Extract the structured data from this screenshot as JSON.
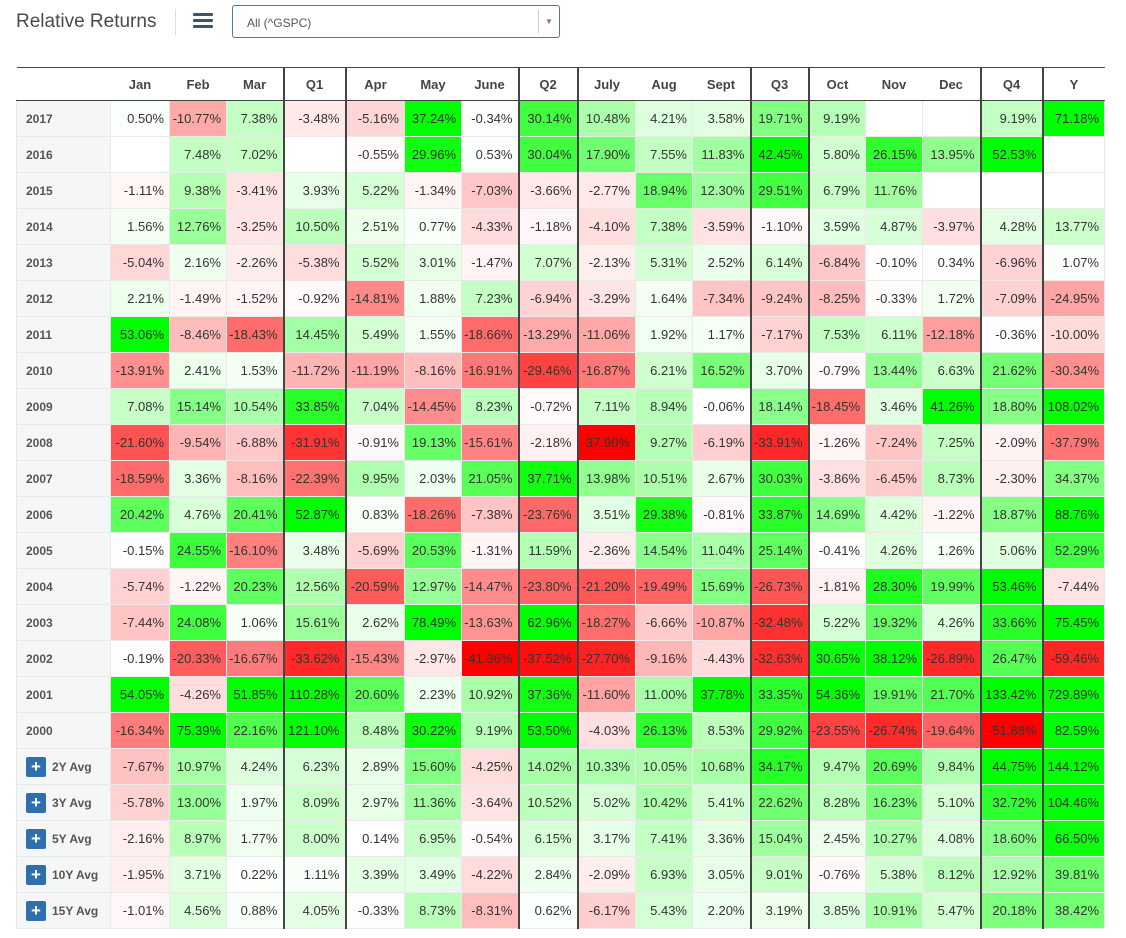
{
  "header": {
    "title": "Relative Returns",
    "menu_icon": "hamburger-menu-icon",
    "select": {
      "value": "All (^GSPC)",
      "arrow_icon": "caret-down-icon"
    }
  },
  "colors": {
    "positive_max": "#00ff00",
    "negative_max": "#ff0000",
    "header_border": "#444444",
    "row_header_bg": "#f5f6f8"
  },
  "table": {
    "columns": [
      "Jan",
      "Feb",
      "Mar",
      "Q1",
      "Apr",
      "May",
      "June",
      "Q2",
      "July",
      "Aug",
      "Sept",
      "Q3",
      "Oct",
      "Nov",
      "Dec",
      "Q4",
      "Y"
    ],
    "rows": [
      {
        "label": "2017",
        "values": [
          "0.50%",
          "-10.77%",
          "7.38%",
          "-3.48%",
          "-5.16%",
          "37.24%",
          "-0.34%",
          "30.14%",
          "10.48%",
          "4.21%",
          "3.58%",
          "19.71%",
          "9.19%",
          "",
          "",
          "9.19%",
          "71.18%"
        ]
      },
      {
        "label": "2016",
        "values": [
          "",
          "7.48%",
          "7.02%",
          "",
          "-0.55%",
          "29.96%",
          "0.53%",
          "30.04%",
          "17.90%",
          "7.55%",
          "11.83%",
          "42.45%",
          "5.80%",
          "26.15%",
          "13.95%",
          "52.53%",
          ""
        ]
      },
      {
        "label": "2015",
        "values": [
          "-1.11%",
          "9.38%",
          "-3.41%",
          "3.93%",
          "5.22%",
          "-1.34%",
          "-7.03%",
          "-3.66%",
          "-2.77%",
          "18.94%",
          "12.30%",
          "29.51%",
          "6.79%",
          "11.76%",
          "",
          "",
          ""
        ]
      },
      {
        "label": "2014",
        "values": [
          "1.56%",
          "12.76%",
          "-3.25%",
          "10.50%",
          "2.51%",
          "0.77%",
          "-4.33%",
          "-1.18%",
          "-4.10%",
          "7.38%",
          "-3.59%",
          "-1.10%",
          "3.59%",
          "4.87%",
          "-3.97%",
          "4.28%",
          "13.77%"
        ]
      },
      {
        "label": "2013",
        "values": [
          "-5.04%",
          "2.16%",
          "-2.26%",
          "-5.38%",
          "5.52%",
          "3.01%",
          "-1.47%",
          "7.07%",
          "-2.13%",
          "5.31%",
          "2.52%",
          "6.14%",
          "-6.84%",
          "-0.10%",
          "0.34%",
          "-6.96%",
          "1.07%"
        ]
      },
      {
        "label": "2012",
        "values": [
          "2.21%",
          "-1.49%",
          "-1.52%",
          "-0.92%",
          "-14.81%",
          "1.88%",
          "7.23%",
          "-6.94%",
          "-3.29%",
          "1.64%",
          "-7.34%",
          "-9.24%",
          "-8.25%",
          "-0.33%",
          "1.72%",
          "-7.09%",
          "-24.95%"
        ]
      },
      {
        "label": "2011",
        "values": [
          "53.06%",
          "-8.46%",
          "-18.43%",
          "14.45%",
          "5.49%",
          "1.55%",
          "-18.66%",
          "-13.29%",
          "-11.06%",
          "1.92%",
          "1.17%",
          "-7.17%",
          "7.53%",
          "6.11%",
          "-12.18%",
          "-0.36%",
          "-10.00%"
        ]
      },
      {
        "label": "2010",
        "values": [
          "-13.91%",
          "2.41%",
          "1.53%",
          "-11.72%",
          "-11.19%",
          "-8.16%",
          "-16.91%",
          "-29.46%",
          "-16.87%",
          "6.21%",
          "16.52%",
          "3.70%",
          "-0.79%",
          "13.44%",
          "6.63%",
          "21.62%",
          "-30.34%"
        ]
      },
      {
        "label": "2009",
        "values": [
          "7.08%",
          "15.14%",
          "10.54%",
          "33.85%",
          "7.04%",
          "-14.45%",
          "8.23%",
          "-0.72%",
          "7.11%",
          "8.94%",
          "-0.06%",
          "18.14%",
          "-18.45%",
          "3.46%",
          "41.26%",
          "18.80%",
          "108.02%"
        ]
      },
      {
        "label": "2008",
        "values": [
          "-21.60%",
          "-9.54%",
          "-6.88%",
          "-31.91%",
          "-0.91%",
          "19.13%",
          "-15.61%",
          "-2.18%",
          "-37.90%",
          "9.27%",
          "-6.19%",
          "-33.91%",
          "-1.26%",
          "-7.24%",
          "7.25%",
          "-2.09%",
          "-37.79%"
        ]
      },
      {
        "label": "2007",
        "values": [
          "-18.59%",
          "3.36%",
          "-8.16%",
          "-22.39%",
          "9.95%",
          "2.03%",
          "21.05%",
          "37.71%",
          "13.98%",
          "10.51%",
          "2.67%",
          "30.03%",
          "-3.86%",
          "-6.45%",
          "8.73%",
          "-2.30%",
          "34.37%"
        ]
      },
      {
        "label": "2006",
        "values": [
          "20.42%",
          "4.76%",
          "20.41%",
          "52.87%",
          "0.83%",
          "-18.26%",
          "-7.38%",
          "-23.76%",
          "3.51%",
          "29.38%",
          "-0.81%",
          "33.87%",
          "14.69%",
          "4.42%",
          "-1.22%",
          "18.87%",
          "88.76%"
        ]
      },
      {
        "label": "2005",
        "values": [
          "-0.15%",
          "24.55%",
          "-16.10%",
          "3.48%",
          "-5.69%",
          "20.53%",
          "-1.31%",
          "11.59%",
          "-2.36%",
          "14.54%",
          "11.04%",
          "25.14%",
          "-0.41%",
          "4.26%",
          "1.26%",
          "5.06%",
          "52.29%"
        ]
      },
      {
        "label": "2004",
        "values": [
          "-5.74%",
          "-1.22%",
          "20.23%",
          "12.56%",
          "-20.59%",
          "12.97%",
          "-14.47%",
          "-23.80%",
          "-21.20%",
          "-19.49%",
          "15.69%",
          "-26.73%",
          "-1.81%",
          "28.30%",
          "19.99%",
          "53.46%",
          "-7.44%"
        ]
      },
      {
        "label": "2003",
        "values": [
          "-7.44%",
          "24.08%",
          "1.06%",
          "15.61%",
          "2.62%",
          "78.49%",
          "-13.63%",
          "62.96%",
          "-18.27%",
          "-6.66%",
          "-10.87%",
          "-32.48%",
          "5.22%",
          "19.32%",
          "4.26%",
          "33.66%",
          "75.45%"
        ]
      },
      {
        "label": "2002",
        "values": [
          "-0.19%",
          "-20.33%",
          "-16.67%",
          "-33.62%",
          "-15.43%",
          "-2.97%",
          "-41.36%",
          "-37.52%",
          "-27.70%",
          "-9.16%",
          "-4.43%",
          "-32.63%",
          "30.65%",
          "38.12%",
          "-26.89%",
          "26.47%",
          "-59.46%"
        ]
      },
      {
        "label": "2001",
        "values": [
          "54.05%",
          "-4.26%",
          "51.85%",
          "110.28%",
          "20.60%",
          "2.23%",
          "10.92%",
          "37.36%",
          "-11.60%",
          "11.00%",
          "37.78%",
          "33.35%",
          "54.36%",
          "19.91%",
          "21.70%",
          "133.42%",
          "729.89%"
        ]
      },
      {
        "label": "2000",
        "values": [
          "-16.34%",
          "75.39%",
          "22.16%",
          "121.10%",
          "8.48%",
          "30.22%",
          "9.19%",
          "53.50%",
          "-4.03%",
          "26.13%",
          "8.53%",
          "29.92%",
          "-23.55%",
          "-26.74%",
          "-19.64%",
          "-51.88%",
          "82.59%"
        ]
      }
    ],
    "averages": [
      {
        "label": "2Y Avg",
        "values": [
          "-7.67%",
          "10.97%",
          "4.24%",
          "6.23%",
          "2.89%",
          "15.60%",
          "-4.25%",
          "14.02%",
          "10.33%",
          "10.05%",
          "10.68%",
          "34.17%",
          "9.47%",
          "20.69%",
          "9.84%",
          "44.75%",
          "144.12%"
        ]
      },
      {
        "label": "3Y Avg",
        "values": [
          "-5.78%",
          "13.00%",
          "1.97%",
          "8.09%",
          "2.97%",
          "11.36%",
          "-3.64%",
          "10.52%",
          "5.02%",
          "10.42%",
          "5.41%",
          "22.62%",
          "8.28%",
          "16.23%",
          "5.10%",
          "32.72%",
          "104.46%"
        ]
      },
      {
        "label": "5Y Avg",
        "values": [
          "-2.16%",
          "8.97%",
          "1.77%",
          "8.00%",
          "0.14%",
          "6.95%",
          "-0.54%",
          "6.15%",
          "3.17%",
          "7.41%",
          "3.36%",
          "15.04%",
          "2.45%",
          "10.27%",
          "4.08%",
          "18.60%",
          "66.50%"
        ]
      },
      {
        "label": "10Y Avg",
        "values": [
          "-1.95%",
          "3.71%",
          "0.22%",
          "1.11%",
          "3.39%",
          "3.49%",
          "-4.22%",
          "2.84%",
          "-2.09%",
          "6.93%",
          "3.05%",
          "9.01%",
          "-0.76%",
          "5.38%",
          "8.12%",
          "12.92%",
          "39.81%"
        ]
      },
      {
        "label": "15Y Avg",
        "values": [
          "-1.01%",
          "4.56%",
          "0.88%",
          "4.05%",
          "-0.33%",
          "8.73%",
          "-8.31%",
          "0.62%",
          "-6.17%",
          "5.43%",
          "2.20%",
          "3.19%",
          "3.85%",
          "10.91%",
          "5.47%",
          "20.18%",
          "38.42%"
        ]
      }
    ],
    "expand_icon": "plus-icon"
  }
}
